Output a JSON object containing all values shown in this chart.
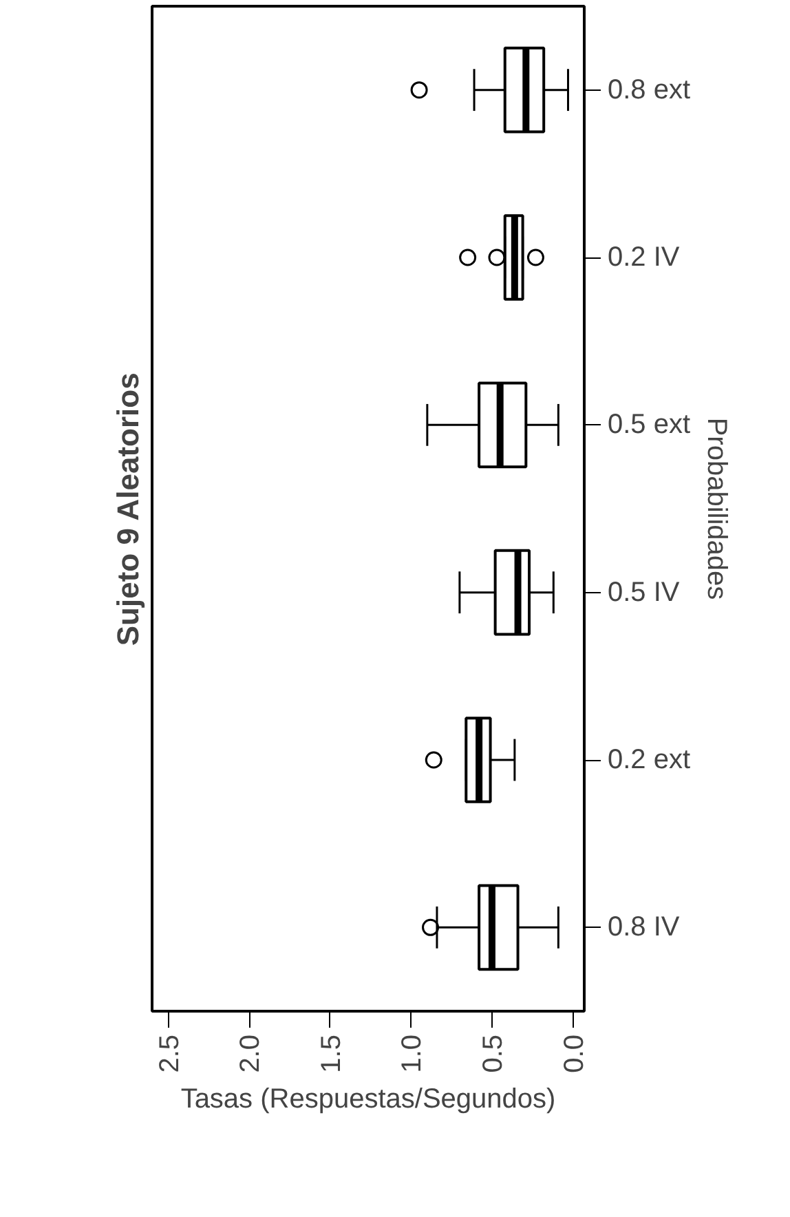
{
  "chart_data": {
    "type": "box",
    "orientation": "horizontal",
    "title": "Sujeto 9 Aleatorios",
    "xlabel": "Tasas (Respuestas/Segundos)",
    "ylabel": "Probabilidades",
    "categories": [
      "0.8 ext",
      "0.2 IV",
      "0.5 ext",
      "0.5 IV",
      "0.2 ext",
      "0.8 IV"
    ],
    "boxes": [
      {
        "low": 0.03,
        "q1": 0.18,
        "median": 0.29,
        "q3": 0.42,
        "high": 0.61,
        "outliers": [
          0.95
        ]
      },
      {
        "low": 0.31,
        "q1": 0.31,
        "median": 0.36,
        "q3": 0.42,
        "high": 0.42,
        "outliers": [
          0.65,
          0.47,
          0.23
        ]
      },
      {
        "low": 0.09,
        "q1": 0.29,
        "median": 0.45,
        "q3": 0.58,
        "high": 0.9
      },
      {
        "low": 0.12,
        "q1": 0.27,
        "median": 0.34,
        "q3": 0.48,
        "high": 0.7
      },
      {
        "low": 0.36,
        "q1": 0.51,
        "median": 0.58,
        "q3": 0.66,
        "high": 0.66,
        "outliers": [
          0.86
        ]
      },
      {
        "low": 0.09,
        "q1": 0.34,
        "median": 0.5,
        "q3": 0.58,
        "high": 0.84,
        "outliers": [
          0.88
        ]
      }
    ],
    "xlim": [
      2.6,
      -0.07
    ],
    "xticks": [
      {
        "value": 0,
        "label": "0.0"
      },
      {
        "value": 0.5,
        "label": "0.5"
      },
      {
        "value": 1,
        "label": "1.0"
      },
      {
        "value": 1.5,
        "label": "1.5"
      },
      {
        "value": 2,
        "label": "2.0"
      },
      {
        "value": 2.5,
        "label": "2.5"
      }
    ],
    "grid": false,
    "marker": "circle"
  }
}
